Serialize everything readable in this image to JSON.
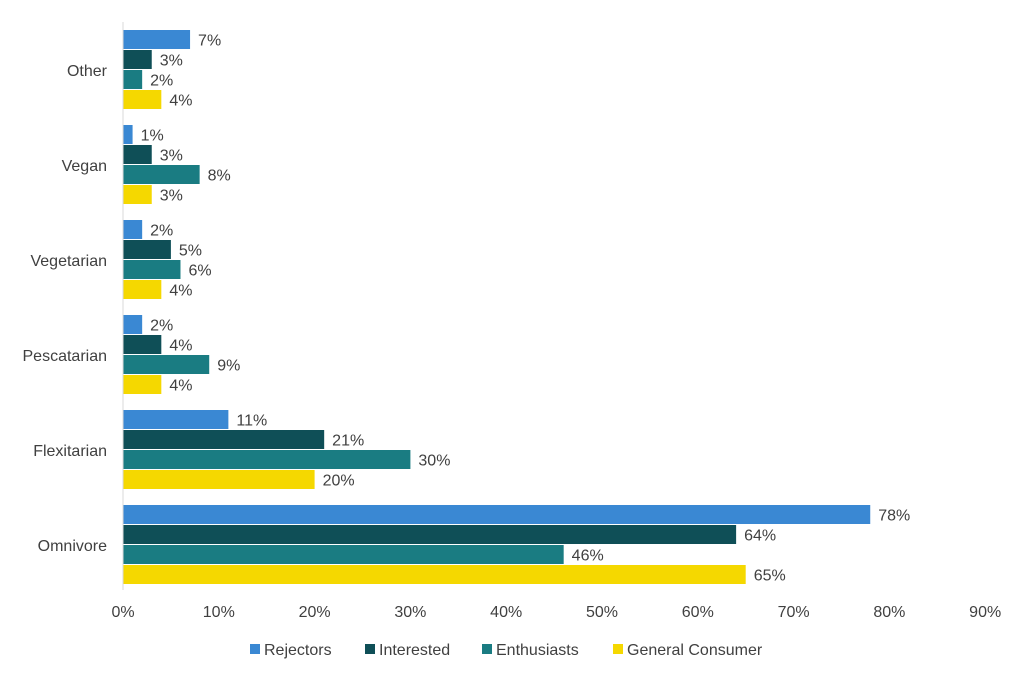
{
  "chart_data": {
    "type": "bar",
    "orientation": "horizontal",
    "categories": [
      "Other",
      "Vegan",
      "Vegetarian",
      "Pescatarian",
      "Flexitarian",
      "Omnivore"
    ],
    "series": [
      {
        "name": "Rejectors",
        "color": "#3a88d3",
        "values": [
          7,
          1,
          2,
          2,
          11,
          78
        ],
        "labels": [
          "7%",
          "1%",
          "2%",
          "2%",
          "11%",
          "78%"
        ]
      },
      {
        "name": "Interested",
        "color": "#0f4f57",
        "values": [
          3,
          3,
          5,
          4,
          21,
          64
        ],
        "labels": [
          "3%",
          "3%",
          "5%",
          "4%",
          "21%",
          "64%"
        ]
      },
      {
        "name": "Enthusiasts",
        "color": "#1a7c82",
        "values": [
          2,
          8,
          6,
          9,
          30,
          46
        ],
        "labels": [
          "2%",
          "8%",
          "6%",
          "9%",
          "30%",
          "46%"
        ]
      },
      {
        "name": "General Consumer",
        "color": "#f5d800",
        "values": [
          4,
          3,
          4,
          4,
          20,
          65
        ],
        "labels": [
          "4%",
          "3%",
          "4%",
          "4%",
          "20%",
          "65%"
        ]
      }
    ],
    "xlim": [
      0,
      90
    ],
    "ticks": [
      0,
      10,
      20,
      30,
      40,
      50,
      60,
      70,
      80,
      90
    ],
    "tick_labels": [
      "0%",
      "10%",
      "20%",
      "30%",
      "40%",
      "50%",
      "60%",
      "70%",
      "80%",
      "90%"
    ],
    "grid": false,
    "legend_position": "bottom"
  }
}
